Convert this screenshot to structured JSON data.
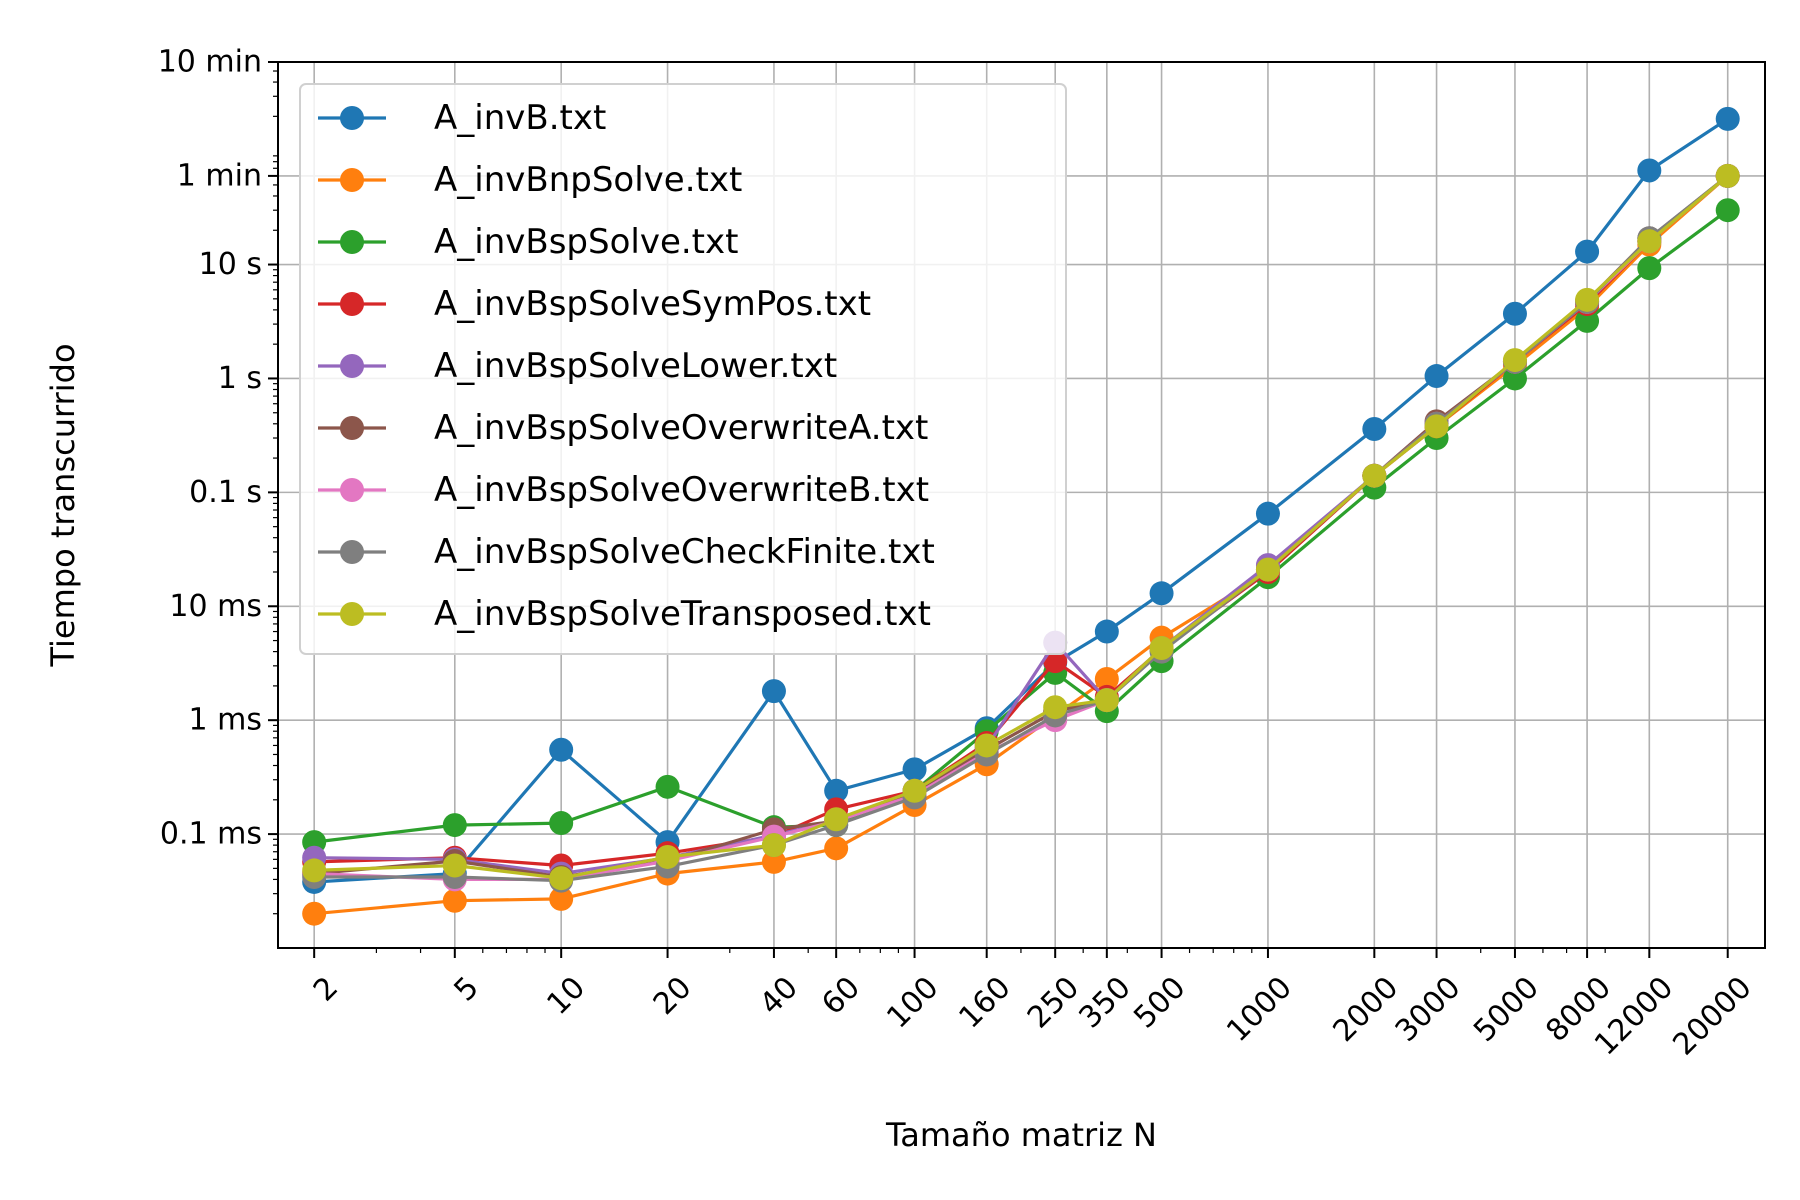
{
  "chart_data": {
    "type": "line",
    "xlabel": "Tamaño matriz N",
    "ylabel": "Tiempo transcurrido",
    "x_scale": "log",
    "y_scale": "log",
    "x": [
      2,
      5,
      10,
      20,
      40,
      60,
      100,
      160,
      250,
      350,
      500,
      1000,
      2000,
      3000,
      5000,
      8000,
      12000,
      20000
    ],
    "xticks": [
      "2",
      "5",
      "10",
      "20",
      "40",
      "60",
      "100",
      "160",
      "250",
      "350",
      "500",
      "1000",
      "2000",
      "3000",
      "5000",
      "8000",
      "12000",
      "20000"
    ],
    "xlim": [
      1.58,
      25500
    ],
    "ylim": [
      1e-05,
      600
    ],
    "yticks": [
      {
        "value": 0.0001,
        "label": "0.1 ms"
      },
      {
        "value": 0.001,
        "label": "1 ms"
      },
      {
        "value": 0.01,
        "label": "10 ms"
      },
      {
        "value": 0.1,
        "label": "0.1 s"
      },
      {
        "value": 1,
        "label": "1 s"
      },
      {
        "value": 10,
        "label": "10 s"
      },
      {
        "value": 60,
        "label": "1 min"
      },
      {
        "value": 600,
        "label": "10 min"
      }
    ],
    "grid": true,
    "legend_position": "top-left",
    "series": [
      {
        "name": "A_invB.txt",
        "color": "#1f77b4",
        "values": [
          3.8e-05,
          4.5e-05,
          0.00055,
          8.5e-05,
          0.0018,
          0.00024,
          0.00037,
          0.00085,
          0.0032,
          0.006,
          0.013,
          0.065,
          0.36,
          1.05,
          3.7,
          13,
          67,
          190
        ]
      },
      {
        "name": "A_invBnpSolve.txt",
        "color": "#ff7f0e",
        "values": [
          2e-05,
          2.6e-05,
          2.7e-05,
          4.5e-05,
          5.7e-05,
          7.5e-05,
          0.00018,
          0.00041,
          0.0011,
          0.0023,
          0.0053,
          0.02,
          0.14,
          0.38,
          1.3,
          4.2,
          15,
          60
        ]
      },
      {
        "name": "A_invBspSolve.txt",
        "color": "#2ca02c",
        "values": [
          8.5e-05,
          0.00012,
          0.000125,
          0.00026,
          0.000115,
          0.00012,
          0.00024,
          0.0008,
          0.0026,
          0.0012,
          0.0033,
          0.018,
          0.11,
          0.3,
          1.0,
          3.2,
          9.3,
          30
        ]
      },
      {
        "name": "A_invBspSolveSymPos.txt",
        "color": "#d62728",
        "values": [
          5.7e-05,
          6.2e-05,
          5.3e-05,
          6.8e-05,
          9.5e-05,
          0.000165,
          0.00024,
          0.00063,
          0.0033,
          0.0016,
          0.0042,
          0.02,
          0.14,
          0.38,
          1.4,
          4.5,
          16,
          60
        ]
      },
      {
        "name": "A_invBspSolveLower.txt",
        "color": "#9467bd",
        "values": [
          6.2e-05,
          6e-05,
          4.5e-05,
          6.2e-05,
          9.8e-05,
          0.00013,
          0.00024,
          0.00058,
          0.0048,
          0.0015,
          0.0043,
          0.023,
          0.14,
          0.4,
          1.4,
          4.7,
          16,
          60
        ]
      },
      {
        "name": "A_invBspSolveOverwriteA.txt",
        "color": "#8c564b",
        "values": [
          4.5e-05,
          5.8e-05,
          4.2e-05,
          5.8e-05,
          0.00011,
          0.00013,
          0.00023,
          0.00055,
          0.0012,
          0.0015,
          0.0042,
          0.021,
          0.14,
          0.42,
          1.4,
          4.8,
          17,
          60
        ]
      },
      {
        "name": "A_invBspSolveOverwriteB.txt",
        "color": "#e377c2",
        "values": [
          4.5e-05,
          4e-05,
          4e-05,
          5.8e-05,
          9.5e-05,
          0.00013,
          0.00022,
          0.00052,
          0.001,
          0.0015,
          0.0042,
          0.021,
          0.14,
          0.4,
          1.4,
          4.7,
          16,
          60
        ]
      },
      {
        "name": "A_invBspSolveCheckFinite.txt",
        "color": "#7f7f7f",
        "values": [
          4.2e-05,
          4.2e-05,
          3.9e-05,
          5.2e-05,
          8e-05,
          0.00012,
          0.00021,
          0.0005,
          0.0011,
          0.0015,
          0.004,
          0.021,
          0.14,
          0.4,
          1.4,
          4.7,
          17,
          60
        ]
      },
      {
        "name": "A_invBspSolveTransposed.txt",
        "color": "#bcbd22",
        "values": [
          4.8e-05,
          5.3e-05,
          4.1e-05,
          6.3e-05,
          8e-05,
          0.000135,
          0.00024,
          0.0006,
          0.0013,
          0.0015,
          0.0043,
          0.021,
          0.14,
          0.38,
          1.45,
          4.9,
          16,
          60
        ]
      }
    ]
  }
}
